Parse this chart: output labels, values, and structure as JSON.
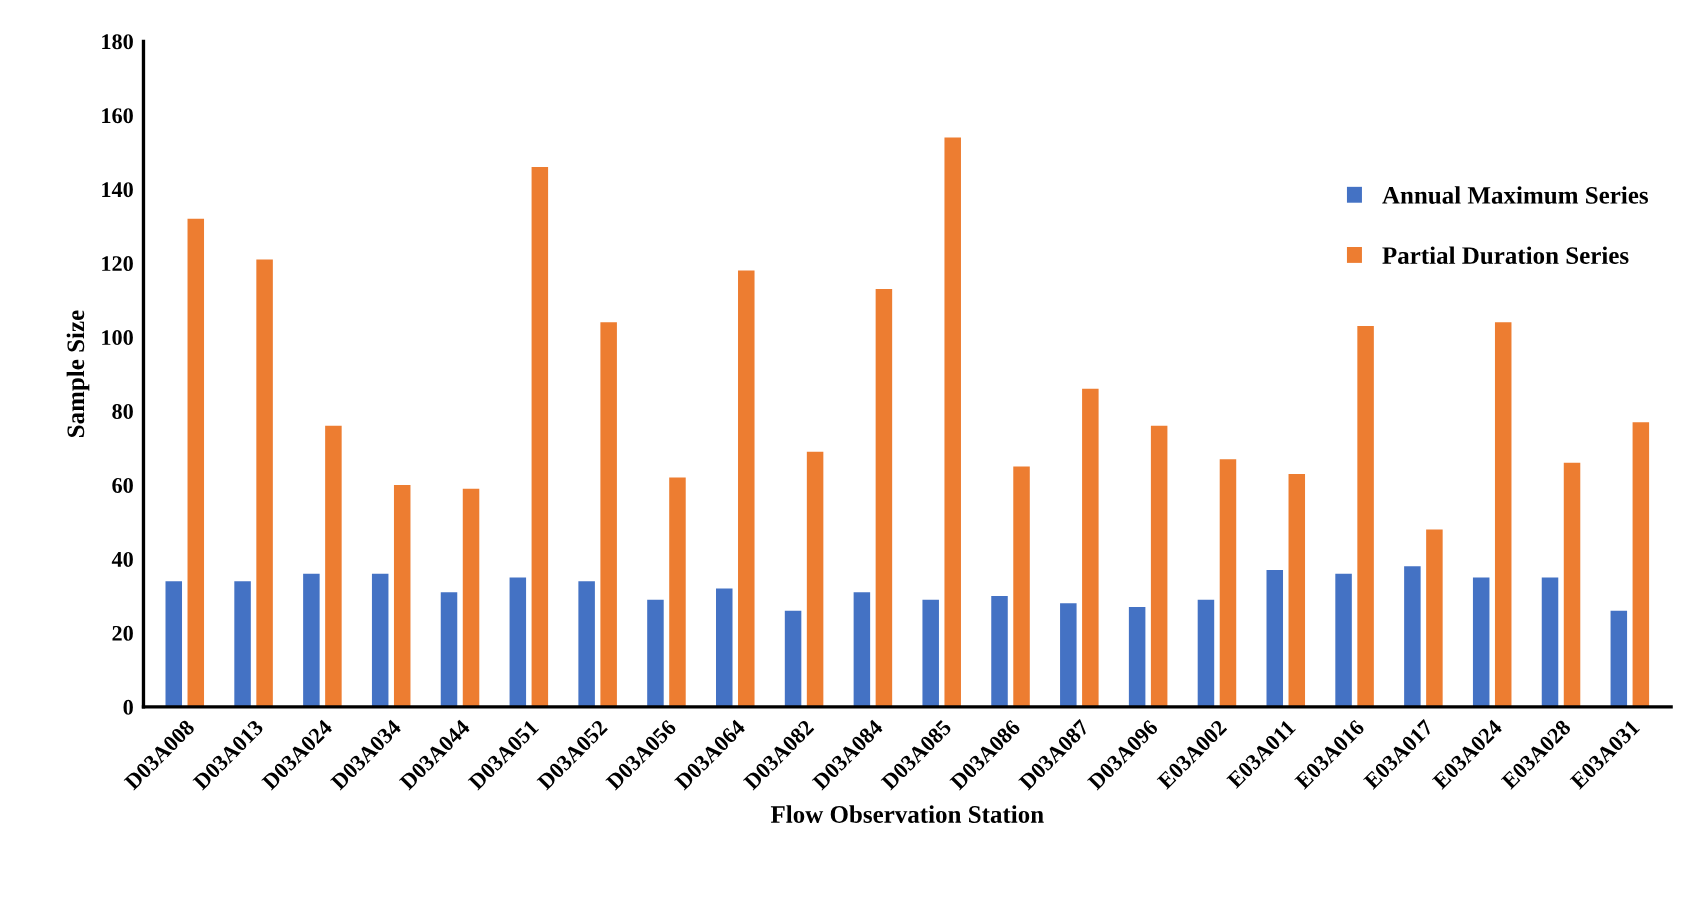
{
  "chart_data": {
    "type": "bar",
    "xlabel": "Flow Observation Station",
    "ylabel": "Sample Size",
    "categories": [
      "D03A008",
      "D03A013",
      "D03A024",
      "D03A034",
      "D03A044",
      "D03A051",
      "D03A052",
      "D03A056",
      "D03A064",
      "D03A082",
      "D03A084",
      "D03A085",
      "D03A086",
      "D03A087",
      "D03A096",
      "E03A002",
      "E03A011",
      "E03A016",
      "E03A017",
      "E03A024",
      "E03A028",
      "E03A031"
    ],
    "series": [
      {
        "name": "Annual Maximum Series",
        "color": "#4472c4",
        "values": [
          34,
          34,
          36,
          36,
          31,
          35,
          34,
          29,
          32,
          26,
          31,
          29,
          30,
          28,
          27,
          29,
          37,
          36,
          38,
          35,
          35,
          26
        ]
      },
      {
        "name": "Partial Duration Series",
        "color": "#ed7d31",
        "values": [
          132,
          121,
          76,
          60,
          59,
          146,
          104,
          62,
          118,
          69,
          113,
          154,
          65,
          86,
          76,
          67,
          63,
          103,
          48,
          104,
          66,
          77
        ]
      }
    ],
    "ylim": [
      0,
      180
    ],
    "yticks": [
      0,
      20,
      40,
      60,
      80,
      100,
      120,
      140,
      160,
      180
    ],
    "grid": false,
    "legend": "right"
  }
}
